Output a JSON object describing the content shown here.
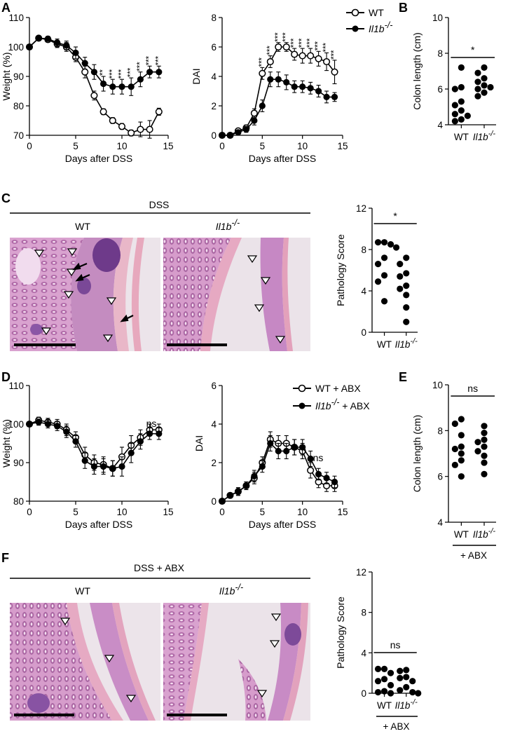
{
  "figure": {
    "panel_letters": [
      "A",
      "B",
      "C",
      "D",
      "E",
      "F"
    ],
    "wt_label": "WT",
    "ko_label": "Il1b",
    "ko_superscript": "-/-",
    "abx_wt_legend": "WT + ABX",
    "abx_ko_legend_suffix": " + ABX",
    "abx_bracket_label": "+ ABX",
    "dss_bar_label": "DSS",
    "dss_abx_bar_label": "DSS + ABX",
    "ns_label": "ns",
    "star_label": "*"
  },
  "chart_data": [
    {
      "id": "A-weight",
      "type": "line",
      "xlabel": "Days after DSS",
      "ylabel": "Weight (%)",
      "xlim": [
        0,
        15
      ],
      "ylim": [
        70,
        110
      ],
      "xticks": [
        0,
        5,
        10,
        15
      ],
      "yticks": [
        70,
        80,
        90,
        100,
        110
      ],
      "x": [
        0,
        1,
        2,
        3,
        4,
        5,
        6,
        7,
        8,
        9,
        10,
        11,
        12,
        13,
        14
      ],
      "series": [
        {
          "name": "WT",
          "marker": "open",
          "values": [
            100,
            103,
            102.5,
            101,
            100,
            96.5,
            91.5,
            83.5,
            78,
            75,
            73,
            70.8,
            72,
            72,
            78
          ],
          "err": [
            0,
            0.8,
            0.8,
            1.2,
            1.5,
            1.5,
            2,
            1.5,
            1,
            1,
            1,
            1,
            2.5,
            3,
            1.2
          ]
        },
        {
          "name": "Il1b-/-",
          "marker": "filled",
          "values": [
            100,
            103,
            102.8,
            101.5,
            100.5,
            98,
            94.5,
            91.5,
            87.5,
            86.5,
            86.5,
            86.5,
            89,
            91.5,
            91.5
          ],
          "err": [
            0,
            0.8,
            0.8,
            1.2,
            1.5,
            2,
            2,
            2.5,
            2.5,
            2.5,
            2.5,
            3,
            2.5,
            2,
            2
          ]
        }
      ],
      "stars": [
        "",
        "",
        "",
        "",
        "",
        "",
        "",
        "",
        "**",
        "***",
        "***",
        "***",
        "***",
        "***",
        "***"
      ]
    },
    {
      "id": "A-dai",
      "type": "line",
      "xlabel": "Days after DSS",
      "ylabel": "DAI",
      "xlim": [
        0,
        15
      ],
      "ylim": [
        0,
        8
      ],
      "xticks": [
        0,
        5,
        10,
        15
      ],
      "yticks": [
        0,
        2,
        4,
        6,
        8
      ],
      "x": [
        0,
        1,
        2,
        3,
        4,
        5,
        6,
        7,
        8,
        9,
        10,
        11,
        12,
        13,
        14
      ],
      "series": [
        {
          "name": "WT",
          "marker": "open",
          "values": [
            0,
            0,
            0.3,
            0.5,
            1.5,
            4.2,
            5,
            6,
            6,
            5.5,
            5.4,
            5.4,
            5.2,
            5,
            4.3
          ],
          "err": [
            0,
            0,
            0.1,
            0.2,
            0.3,
            0.4,
            0.4,
            0.3,
            0.3,
            0.4,
            0.5,
            0.5,
            0.5,
            0.6,
            0.8
          ]
        },
        {
          "name": "Il1b-/-",
          "marker": "filled",
          "values": [
            0,
            0,
            0.2,
            0.4,
            1,
            2,
            3.8,
            3.8,
            3.6,
            3.3,
            3.3,
            3.2,
            3,
            2.6,
            2.6
          ],
          "err": [
            0,
            0,
            0.1,
            0.2,
            0.3,
            0.4,
            0.5,
            0.5,
            0.5,
            0.4,
            0.4,
            0.4,
            0.4,
            0.4,
            0.3
          ]
        }
      ],
      "stars": [
        "",
        "",
        "",
        "",
        "",
        "***",
        "***",
        "***",
        "***",
        "***",
        "***",
        "***",
        "***",
        "***",
        "***"
      ]
    },
    {
      "id": "B-colon",
      "type": "scatter",
      "ylabel": "Colon length (cm)",
      "ylim": [
        4,
        10
      ],
      "yticks": [
        4,
        6,
        8,
        10
      ],
      "categories": [
        "WT",
        "Il1b-/-"
      ],
      "groups": [
        [
          7.2,
          6.1,
          6.0,
          5.3,
          5.1,
          4.8,
          4.6,
          4.5,
          4.3,
          4.2
        ],
        [
          7.2,
          6.9,
          6.6,
          6.4,
          6.2,
          6.1,
          6.0,
          5.8,
          5.6
        ]
      ],
      "significance": "*"
    },
    {
      "id": "C-path",
      "type": "scatter",
      "ylabel": "Pathology Score",
      "ylim": [
        0,
        12
      ],
      "yticks": [
        0,
        4,
        8,
        12
      ],
      "categories": [
        "WT",
        "Il1b-/-"
      ],
      "groups": [
        [
          8.7,
          8.7,
          8.5,
          8.2,
          7.2,
          6.6,
          5.5,
          4.9,
          3.0
        ],
        [
          7.2,
          6.6,
          5.7,
          5.4,
          4.5,
          4.2,
          3.6,
          2.4,
          1.0
        ]
      ],
      "significance": "*"
    },
    {
      "id": "D-weight",
      "type": "line",
      "xlabel": "Days after DSS",
      "ylabel": "Weight (%)",
      "xlim": [
        0,
        15
      ],
      "ylim": [
        80,
        110
      ],
      "xticks": [
        0,
        5,
        10,
        15
      ],
      "yticks": [
        80,
        90,
        100,
        110
      ],
      "x": [
        0,
        1,
        2,
        3,
        4,
        5,
        6,
        7,
        8,
        9,
        10,
        11,
        12,
        13,
        14
      ],
      "series": [
        {
          "name": "WT + ABX",
          "marker": "open",
          "values": [
            100,
            101,
            100.5,
            100,
            98.5,
            96.5,
            92,
            90,
            89.5,
            88.5,
            91.5,
            94.5,
            96.5,
            98.5,
            98.5
          ],
          "err": [
            0,
            0.8,
            1,
            1.2,
            1.5,
            1.5,
            2,
            2,
            2,
            2,
            2.5,
            2.5,
            2,
            1.5,
            1.5
          ]
        },
        {
          "name": "Il1b-/- + ABX",
          "marker": "filled",
          "values": [
            100,
            100.5,
            100,
            99.5,
            98,
            95.5,
            90.5,
            89,
            89,
            88.5,
            89,
            92.5,
            95.5,
            97.5,
            97.5
          ],
          "err": [
            0,
            0.8,
            1,
            1.2,
            1.5,
            1.5,
            2,
            2,
            2,
            2,
            2.5,
            2.5,
            2,
            1.5,
            1.5
          ]
        }
      ],
      "annotation": "ns"
    },
    {
      "id": "D-dai",
      "type": "line",
      "xlabel": "Days after DSS",
      "ylabel": "DAI",
      "xlim": [
        0,
        15
      ],
      "ylim": [
        0,
        6
      ],
      "xticks": [
        0,
        5,
        10,
        15
      ],
      "yticks": [
        0,
        2,
        4,
        6
      ],
      "x": [
        0,
        1,
        2,
        3,
        4,
        5,
        6,
        7,
        8,
        9,
        10,
        11,
        12,
        13,
        14
      ],
      "series": [
        {
          "name": "WT + ABX",
          "marker": "open",
          "values": [
            0,
            0.3,
            0.5,
            0.8,
            1.2,
            2,
            3.2,
            3,
            3,
            2.8,
            2.6,
            1.6,
            1,
            0.8,
            0.8
          ],
          "err": [
            0,
            0.1,
            0.2,
            0.2,
            0.3,
            0.3,
            0.4,
            0.4,
            0.4,
            0.4,
            0.4,
            0.4,
            0.3,
            0.3,
            0.3
          ]
        },
        {
          "name": "Il1b-/- + ABX",
          "marker": "filled",
          "values": [
            0,
            0.3,
            0.5,
            0.8,
            1.3,
            1.8,
            3,
            2.6,
            2.6,
            2.8,
            2.8,
            2.2,
            1.4,
            1.2,
            1.0
          ],
          "err": [
            0,
            0.1,
            0.2,
            0.2,
            0.3,
            0.3,
            0.4,
            0.4,
            0.4,
            0.4,
            0.4,
            0.4,
            0.3,
            0.3,
            0.3
          ]
        }
      ],
      "annotation": "ns"
    },
    {
      "id": "E-colon",
      "type": "scatter",
      "ylabel": "Colon length (cm)",
      "ylim": [
        4,
        10
      ],
      "yticks": [
        4,
        6,
        8,
        10
      ],
      "categories": [
        "WT",
        "Il1b-/-"
      ],
      "groups": [
        [
          8.5,
          8.3,
          7.8,
          7.3,
          7.2,
          7.0,
          6.7,
          6.5,
          6.0
        ],
        [
          8.2,
          7.9,
          7.6,
          7.5,
          7.3,
          7.1,
          6.9,
          6.6,
          6.1
        ]
      ],
      "significance": "ns",
      "bracket": "+ ABX"
    },
    {
      "id": "F-path",
      "type": "scatter",
      "ylabel": "Pathology Score",
      "ylim": [
        0,
        12
      ],
      "yticks": [
        0,
        4,
        8,
        12
      ],
      "categories": [
        "WT",
        "Il1b-/-"
      ],
      "groups": [
        [
          2.4,
          2.4,
          2.0,
          1.4,
          1.2,
          0.8,
          0.2,
          0.1,
          0.0
        ],
        [
          2.3,
          2.2,
          1.6,
          1.5,
          1.2,
          0.6,
          0.3,
          0.1,
          0.0
        ]
      ],
      "significance": "ns",
      "bracket": "+ ABX"
    }
  ]
}
